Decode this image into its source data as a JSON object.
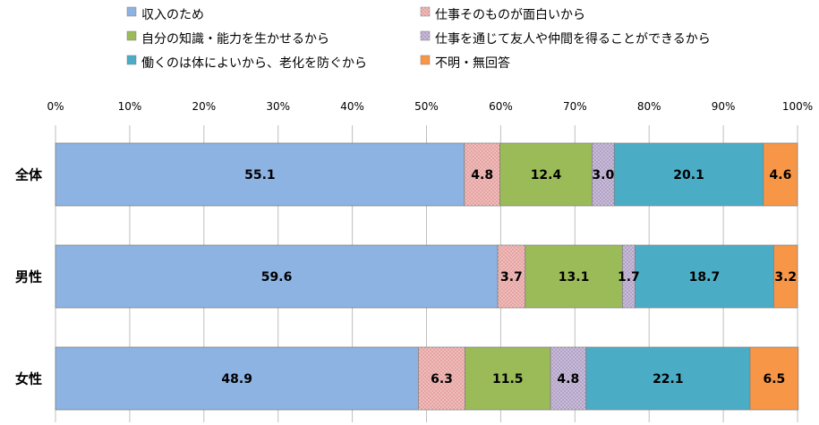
{
  "chart_data": {
    "type": "bar",
    "orientation": "horizontal",
    "stacked": "percent",
    "title": "",
    "xlim": [
      0,
      100
    ],
    "x_ticks": [
      "0%",
      "10%",
      "20%",
      "30%",
      "40%",
      "50%",
      "60%",
      "70%",
      "80%",
      "90%",
      "100%"
    ],
    "legend_position": "top",
    "categories": [
      "全体",
      "男性",
      "女性"
    ],
    "series": [
      {
        "name": "収入のため",
        "color": "#8db3e2",
        "pattern": "none",
        "values": [
          55.1,
          59.6,
          48.9
        ]
      },
      {
        "name": "仕事そのものが面白いから",
        "color": "#e6a3a1",
        "pattern": "dots",
        "values": [
          4.8,
          3.7,
          6.3
        ]
      },
      {
        "name": "自分の知識・能力を生かせるから",
        "color": "#9bbb59",
        "pattern": "none",
        "values": [
          12.4,
          13.1,
          11.5
        ]
      },
      {
        "name": "仕事を通じて友人や仲間を得ることができるから",
        "color": "#b3a2c7",
        "pattern": "dots",
        "values": [
          3.0,
          1.7,
          4.8
        ]
      },
      {
        "name": "働くのは体によいから、老化を防ぐから",
        "color": "#4bacc6",
        "pattern": "none",
        "values": [
          20.1,
          18.7,
          22.1
        ]
      },
      {
        "name": "不明・無回答",
        "color": "#f79646",
        "pattern": "none",
        "values": [
          4.6,
          3.2,
          6.5
        ]
      }
    ]
  }
}
